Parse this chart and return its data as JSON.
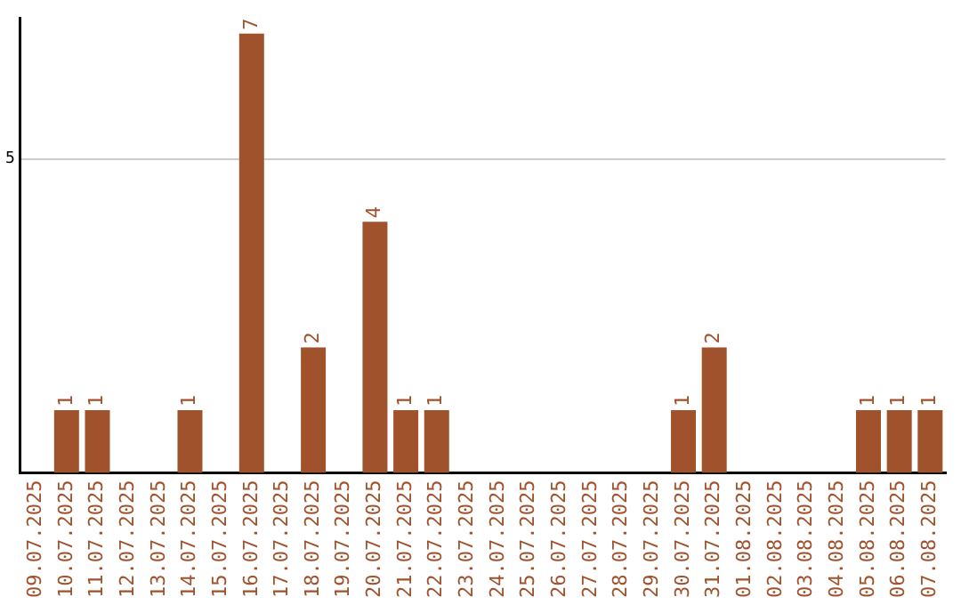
{
  "chart_data": {
    "type": "bar",
    "categories": [
      "09.07.2025",
      "10.07.2025",
      "11.07.2025",
      "12.07.2025",
      "13.07.2025",
      "14.07.2025",
      "15.07.2025",
      "16.07.2025",
      "17.07.2025",
      "18.07.2025",
      "19.07.2025",
      "20.07.2025",
      "21.07.2025",
      "22.07.2025",
      "23.07.2025",
      "24.07.2025",
      "25.07.2025",
      "26.07.2025",
      "27.07.2025",
      "28.07.2025",
      "29.07.2025",
      "30.07.2025",
      "31.07.2025",
      "01.08.2025",
      "02.08.2025",
      "03.08.2025",
      "04.08.2025",
      "05.08.2025",
      "06.08.2025",
      "07.08.2025"
    ],
    "values": [
      0,
      1,
      1,
      0,
      0,
      1,
      0,
      7,
      0,
      2,
      0,
      4,
      1,
      1,
      0,
      0,
      0,
      0,
      0,
      0,
      0,
      1,
      2,
      0,
      0,
      0,
      0,
      1,
      1,
      1
    ],
    "value_labels": [
      null,
      "1",
      "1",
      null,
      null,
      "1",
      null,
      "7",
      null,
      "2",
      null,
      "4",
      "1",
      "1",
      null,
      null,
      null,
      null,
      null,
      null,
      null,
      "1",
      "2",
      null,
      null,
      null,
      null,
      "1",
      "1",
      "1"
    ],
    "color": "#a0522d",
    "ylim": [
      0,
      7.25
    ],
    "yticks": [
      5
    ],
    "grid": "y",
    "legend": false
  }
}
